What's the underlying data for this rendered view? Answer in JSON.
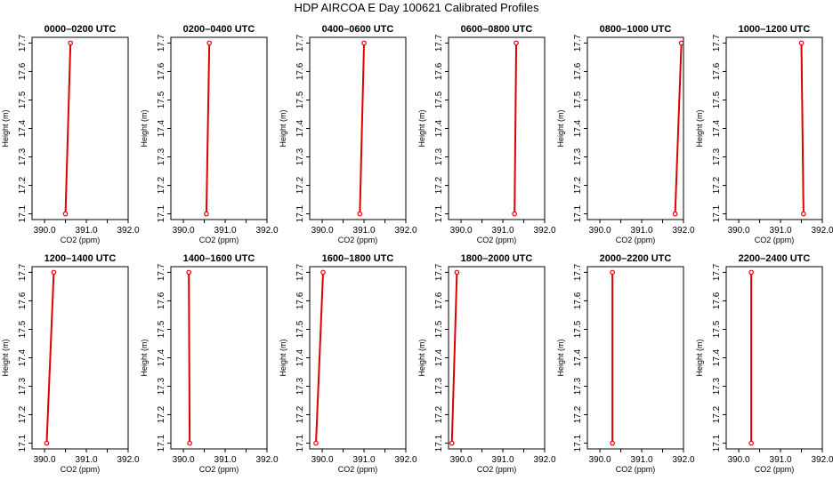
{
  "figure": {
    "title": "HDP AIRCOA E  Day 100621  Calibrated Profiles"
  },
  "colors": {
    "series": "#dd0000",
    "axis": "#000000"
  },
  "chart_data": [
    {
      "type": "line",
      "title": "0000–0200 UTC",
      "xlabel": "CO2 (ppm)",
      "ylabel": "Height (m)",
      "xlim": [
        389.7,
        392.0
      ],
      "ylim": [
        17.08,
        17.72
      ],
      "xticks": [
        "390.0",
        "391.0",
        "392.0"
      ],
      "yticks": [
        "17.1",
        "17.2",
        "17.3",
        "17.4",
        "17.5",
        "17.6",
        "17.7"
      ],
      "series": [
        {
          "x": [
            390.5,
            390.62
          ],
          "y": [
            17.1,
            17.7
          ]
        }
      ]
    },
    {
      "type": "line",
      "title": "0200–0400 UTC",
      "xlabel": "CO2 (ppm)",
      "ylabel": "Height (m)",
      "xlim": [
        389.7,
        392.0
      ],
      "ylim": [
        17.08,
        17.72
      ],
      "xticks": [
        "390.0",
        "391.0",
        "392.0"
      ],
      "yticks": [
        "17.1",
        "17.2",
        "17.3",
        "17.4",
        "17.5",
        "17.6",
        "17.7"
      ],
      "series": [
        {
          "x": [
            390.55,
            390.62
          ],
          "y": [
            17.1,
            17.7
          ]
        }
      ]
    },
    {
      "type": "line",
      "title": "0400–0600 UTC",
      "xlabel": "CO2 (ppm)",
      "ylabel": "Height (m)",
      "xlim": [
        389.7,
        392.0
      ],
      "ylim": [
        17.08,
        17.72
      ],
      "xticks": [
        "390.0",
        "391.0",
        "392.0"
      ],
      "yticks": [
        "17.1",
        "17.2",
        "17.3",
        "17.4",
        "17.5",
        "17.6",
        "17.7"
      ],
      "series": [
        {
          "x": [
            390.9,
            391.0
          ],
          "y": [
            17.1,
            17.7
          ]
        }
      ]
    },
    {
      "type": "line",
      "title": "0600–0800 UTC",
      "xlabel": "CO2 (ppm)",
      "ylabel": "Height (m)",
      "xlim": [
        389.7,
        392.0
      ],
      "ylim": [
        17.08,
        17.72
      ],
      "xticks": [
        "390.0",
        "391.0",
        "392.0"
      ],
      "yticks": [
        "17.1",
        "17.2",
        "17.3",
        "17.4",
        "17.5",
        "17.6",
        "17.7"
      ],
      "series": [
        {
          "x": [
            391.28,
            391.32
          ],
          "y": [
            17.1,
            17.7
          ]
        }
      ]
    },
    {
      "type": "line",
      "title": "0800–1000 UTC",
      "xlabel": "CO2 (ppm)",
      "ylabel": "Height (m)",
      "xlim": [
        389.7,
        392.0
      ],
      "ylim": [
        17.08,
        17.72
      ],
      "xticks": [
        "390.0",
        "391.0",
        "392.0"
      ],
      "yticks": [
        "17.1",
        "17.2",
        "17.3",
        "17.4",
        "17.5",
        "17.6",
        "17.7"
      ],
      "series": [
        {
          "x": [
            391.8,
            391.95
          ],
          "y": [
            17.1,
            17.7
          ]
        }
      ]
    },
    {
      "type": "line",
      "title": "1000–1200 UTC",
      "xlabel": "CO2 (ppm)",
      "ylabel": "Height (m)",
      "xlim": [
        389.7,
        392.0
      ],
      "ylim": [
        17.08,
        17.72
      ],
      "xticks": [
        "390.0",
        "391.0",
        "392.0"
      ],
      "yticks": [
        "17.1",
        "17.2",
        "17.3",
        "17.4",
        "17.5",
        "17.6",
        "17.7"
      ],
      "series": [
        {
          "x": [
            391.55,
            391.5
          ],
          "y": [
            17.1,
            17.7
          ]
        }
      ]
    },
    {
      "type": "line",
      "title": "1200–1400 UTC",
      "xlabel": "CO2 (ppm)",
      "ylabel": "Height (m)",
      "xlim": [
        389.7,
        392.0
      ],
      "ylim": [
        17.08,
        17.72
      ],
      "xticks": [
        "390.0",
        "391.0",
        "392.0"
      ],
      "yticks": [
        "17.1",
        "17.2",
        "17.3",
        "17.4",
        "17.5",
        "17.6",
        "17.7"
      ],
      "series": [
        {
          "x": [
            390.05,
            390.22
          ],
          "y": [
            17.1,
            17.7
          ]
        }
      ]
    },
    {
      "type": "line",
      "title": "1400–1600 UTC",
      "xlabel": "CO2 (ppm)",
      "ylabel": "Height (m)",
      "xlim": [
        389.7,
        392.0
      ],
      "ylim": [
        17.08,
        17.72
      ],
      "xticks": [
        "390.0",
        "391.0",
        "392.0"
      ],
      "yticks": [
        "17.1",
        "17.2",
        "17.3",
        "17.4",
        "17.5",
        "17.6",
        "17.7"
      ],
      "series": [
        {
          "x": [
            390.15,
            390.13
          ],
          "y": [
            17.1,
            17.7
          ]
        }
      ]
    },
    {
      "type": "line",
      "title": "1600–1800 UTC",
      "xlabel": "CO2 (ppm)",
      "ylabel": "Height (m)",
      "xlim": [
        389.7,
        392.0
      ],
      "ylim": [
        17.08,
        17.72
      ],
      "xticks": [
        "390.0",
        "391.0",
        "392.0"
      ],
      "yticks": [
        "17.1",
        "17.2",
        "17.3",
        "17.4",
        "17.5",
        "17.6",
        "17.7"
      ],
      "series": [
        {
          "x": [
            389.85,
            390.02
          ],
          "y": [
            17.1,
            17.7
          ]
        }
      ]
    },
    {
      "type": "line",
      "title": "1800–2000 UTC",
      "xlabel": "CO2 (ppm)",
      "ylabel": "Height (m)",
      "xlim": [
        389.7,
        392.0
      ],
      "ylim": [
        17.08,
        17.72
      ],
      "xticks": [
        "390.0",
        "391.0",
        "392.0"
      ],
      "yticks": [
        "17.1",
        "17.2",
        "17.3",
        "17.4",
        "17.5",
        "17.6",
        "17.7"
      ],
      "series": [
        {
          "x": [
            389.78,
            389.9
          ],
          "y": [
            17.1,
            17.7
          ]
        }
      ]
    },
    {
      "type": "line",
      "title": "2000–2200 UTC",
      "xlabel": "CO2 (ppm)",
      "ylabel": "Height (m)",
      "xlim": [
        389.7,
        392.0
      ],
      "ylim": [
        17.08,
        17.72
      ],
      "xticks": [
        "390.0",
        "391.0",
        "392.0"
      ],
      "yticks": [
        "17.1",
        "17.2",
        "17.3",
        "17.4",
        "17.5",
        "17.6",
        "17.7"
      ],
      "series": [
        {
          "x": [
            390.3,
            390.3
          ],
          "y": [
            17.1,
            17.7
          ]
        }
      ]
    },
    {
      "type": "line",
      "title": "2200–2400 UTC",
      "xlabel": "CO2 (ppm)",
      "ylabel": "Height (m)",
      "xlim": [
        389.7,
        392.0
      ],
      "ylim": [
        17.08,
        17.72
      ],
      "xticks": [
        "390.0",
        "391.0",
        "392.0"
      ],
      "yticks": [
        "17.1",
        "17.2",
        "17.3",
        "17.4",
        "17.5",
        "17.6",
        "17.7"
      ],
      "series": [
        {
          "x": [
            390.3,
            390.3
          ],
          "y": [
            17.1,
            17.7
          ]
        }
      ]
    }
  ]
}
